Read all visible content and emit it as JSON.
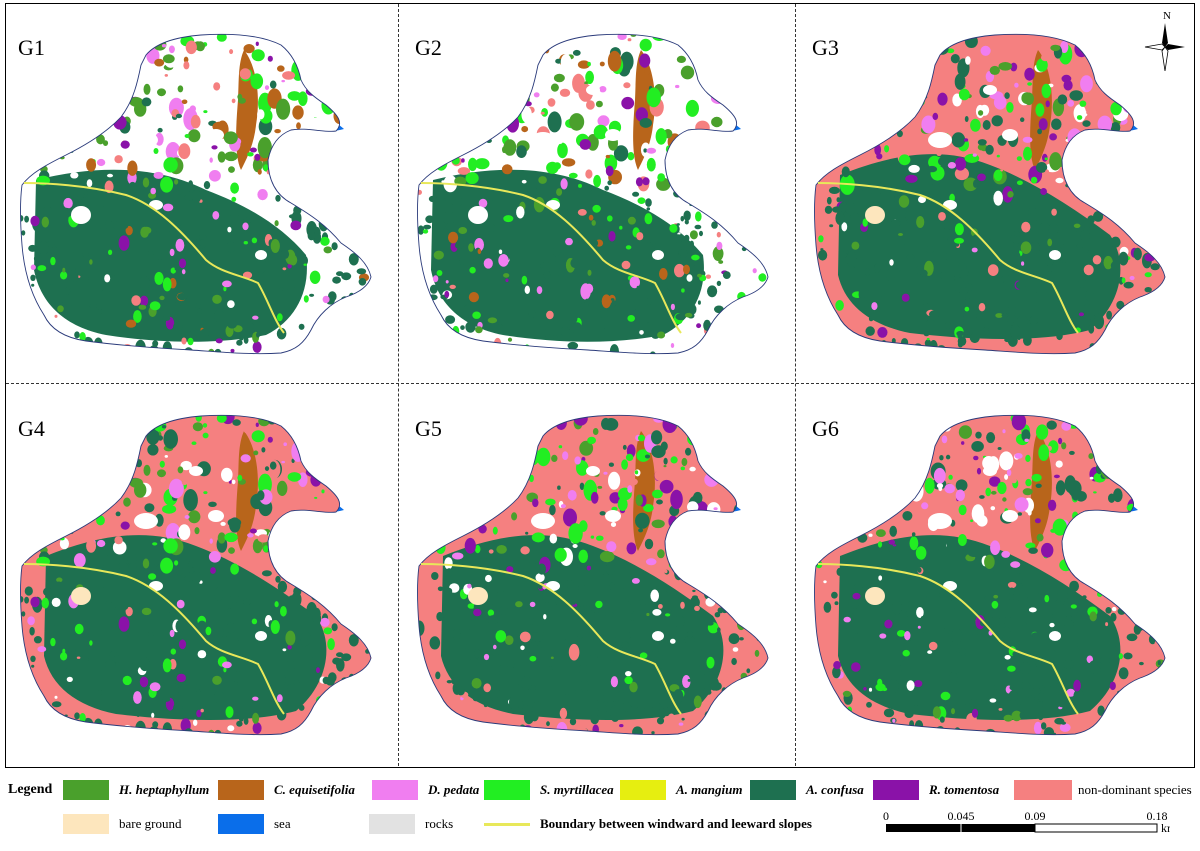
{
  "panels": [
    {
      "label": "G1"
    },
    {
      "label": "G2"
    },
    {
      "label": "G3"
    },
    {
      "label": "G4"
    },
    {
      "label": "G5"
    },
    {
      "label": "G6"
    }
  ],
  "north": {
    "letter": "N"
  },
  "legend": {
    "title": "Legend",
    "items": [
      {
        "label": "H. heptaphyllum",
        "color": "#4aa02c",
        "style": "italic-bold"
      },
      {
        "label": "C. equisetifolia",
        "color": "#b8651b",
        "style": "italic-bold"
      },
      {
        "label": "D. pedata",
        "color": "#f07ef0",
        "style": "italic-bold"
      },
      {
        "label": "S. myrtillacea",
        "color": "#22ee22",
        "style": "italic-bold"
      },
      {
        "label": "A. mangium",
        "color": "#e6ee10",
        "style": "italic-bold"
      },
      {
        "label": "A. confusa",
        "color": "#1e7050",
        "style": "italic-bold"
      },
      {
        "label": "R. tomentosa",
        "color": "#8a12a8",
        "style": "italic-bold"
      },
      {
        "label": "non-dominant species",
        "color": "#f58080",
        "style": "plain"
      },
      {
        "label": "bare ground",
        "color": "#fde6bd",
        "style": "plain"
      },
      {
        "label": "sea",
        "color": "#0a6eea",
        "style": "plain"
      },
      {
        "label": "rocks",
        "color": "#e2e2e2",
        "style": "plain"
      },
      {
        "label": "Boundary between windward and leeward slopes",
        "color": "#e8e85a",
        "style": "line"
      }
    ]
  },
  "scale_bar": {
    "ticks": [
      "0",
      "0.045",
      "0.09",
      "0.18"
    ],
    "unit": "km"
  }
}
